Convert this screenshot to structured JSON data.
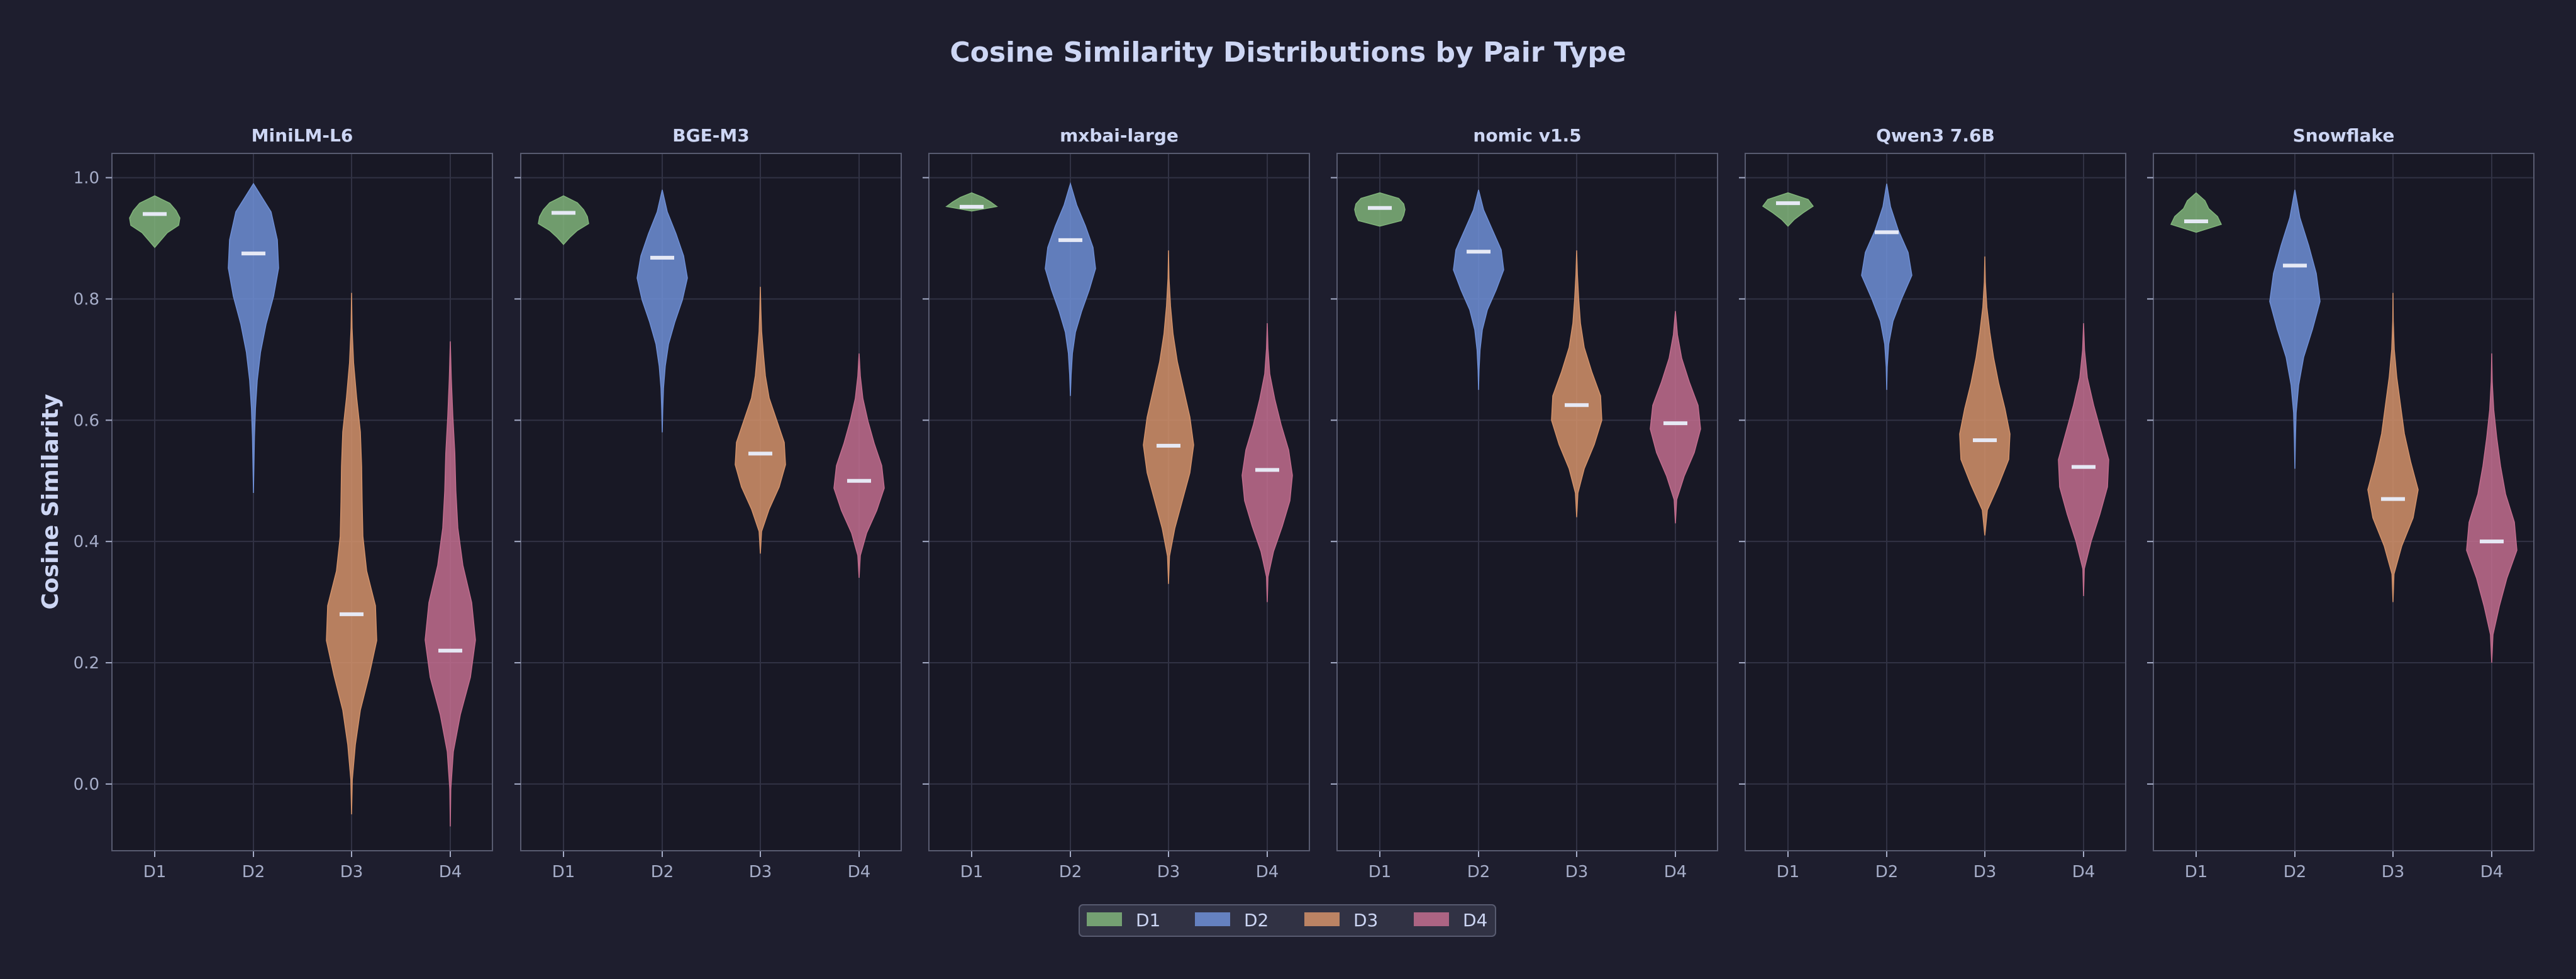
{
  "chart_data": {
    "type": "violin",
    "title": "Cosine Similarity Distributions by Pair Type",
    "ylabel": "Cosine Similarity",
    "xlabel": "",
    "ylim": [
      -0.11,
      1.04
    ],
    "yticks": [
      "0.0",
      "0.2",
      "0.4",
      "0.6",
      "0.8",
      "1.0"
    ],
    "ytick_values": [
      0.0,
      0.2,
      0.4,
      0.6,
      0.8,
      1.0
    ],
    "categories": [
      "D1",
      "D2",
      "D3",
      "D4"
    ],
    "grid": true,
    "legend_placement": "bottom-center",
    "colors": {
      "background": "#1e1e2e",
      "panel": "#181825",
      "panel_border": "#585b70",
      "grid": "#313244",
      "text": "#cdd6f4",
      "tick_text": "#a6adc8",
      "median": "#e6e9f5",
      "D1": "#80b47a",
      "D2": "#6e8fd6",
      "D3": "#d3926a",
      "D4": "#c26d8e"
    },
    "legend": [
      "D1",
      "D2",
      "D3",
      "D4"
    ],
    "panels": [
      {
        "title": "MiniLM-L6",
        "medians": {
          "D1": 0.94,
          "D2": 0.875,
          "D3": 0.28,
          "D4": 0.22
        },
        "violins": {
          "D1": {
            "min": 0.885,
            "max": 0.97,
            "profile": [
              0.25,
              0.5,
              0.95,
              1.0,
              0.85,
              0.6
            ]
          },
          "D2": {
            "min": 0.48,
            "max": 0.99,
            "profile": [
              0.02,
              0.04,
              0.08,
              0.15,
              0.28,
              0.5,
              0.8,
              1.0,
              0.95,
              0.7
            ]
          },
          "D3": {
            "min": -0.05,
            "max": 0.81,
            "profile": [
              0.03,
              0.15,
              0.35,
              0.7,
              1.0,
              0.95,
              0.6,
              0.45,
              0.42,
              0.4,
              0.35,
              0.2,
              0.08,
              0.02
            ]
          },
          "D4": {
            "min": -0.07,
            "max": 0.73,
            "profile": [
              0.02,
              0.12,
              0.4,
              0.8,
              1.0,
              0.85,
              0.5,
              0.3,
              0.22,
              0.18,
              0.1,
              0.04
            ]
          }
        }
      },
      {
        "title": "BGE-M3",
        "medians": {
          "D1": 0.942,
          "D2": 0.868,
          "D3": 0.545,
          "D4": 0.5
        },
        "violins": {
          "D1": {
            "min": 0.89,
            "max": 0.97,
            "profile": [
              0.25,
              0.55,
              1.0,
              0.95,
              0.8,
              0.55
            ]
          },
          "D2": {
            "min": 0.58,
            "max": 0.98,
            "profile": [
              0.02,
              0.05,
              0.12,
              0.25,
              0.5,
              0.8,
              1.0,
              0.85,
              0.55,
              0.2
            ]
          },
          "D3": {
            "min": 0.38,
            "max": 0.82,
            "profile": [
              0.05,
              0.35,
              0.75,
              1.0,
              0.95,
              0.65,
              0.35,
              0.2,
              0.12,
              0.05,
              0.02
            ]
          },
          "D4": {
            "min": 0.34,
            "max": 0.71,
            "profile": [
              0.05,
              0.3,
              0.7,
              1.0,
              0.9,
              0.6,
              0.35,
              0.15,
              0.05
            ]
          }
        }
      },
      {
        "title": "mxbai-large",
        "medians": {
          "D1": 0.952,
          "D2": 0.897,
          "D3": 0.558,
          "D4": 0.518
        },
        "violins": {
          "D1": {
            "min": 0.945,
            "max": 0.975,
            "profile": [
              1.0,
              0.75,
              0.45
            ]
          },
          "D2": {
            "min": 0.64,
            "max": 0.99,
            "profile": [
              0.03,
              0.08,
              0.2,
              0.45,
              0.75,
              1.0,
              0.9,
              0.6,
              0.25
            ]
          },
          "D3": {
            "min": 0.33,
            "max": 0.88,
            "profile": [
              0.04,
              0.25,
              0.55,
              0.85,
              1.0,
              0.85,
              0.6,
              0.35,
              0.18,
              0.08,
              0.02
            ]
          },
          "D4": {
            "min": 0.3,
            "max": 0.76,
            "profile": [
              0.03,
              0.25,
              0.6,
              0.9,
              1.0,
              0.85,
              0.55,
              0.3,
              0.1,
              0.03
            ]
          }
        }
      },
      {
        "title": "nomic v1.5",
        "medians": {
          "D1": 0.95,
          "D2": 0.878,
          "D3": 0.625,
          "D4": 0.595
        },
        "violins": {
          "D1": {
            "min": 0.92,
            "max": 0.975,
            "profile": [
              0.85,
              0.95,
              1.0,
              0.95,
              0.75
            ]
          },
          "D2": {
            "min": 0.65,
            "max": 0.98,
            "profile": [
              0.02,
              0.06,
              0.15,
              0.35,
              0.7,
              1.0,
              0.9,
              0.55,
              0.2
            ]
          },
          "D3": {
            "min": 0.44,
            "max": 0.88,
            "profile": [
              0.05,
              0.3,
              0.7,
              1.0,
              0.95,
              0.6,
              0.3,
              0.15,
              0.08,
              0.03
            ]
          },
          "D4": {
            "min": 0.43,
            "max": 0.78,
            "profile": [
              0.05,
              0.35,
              0.75,
              1.0,
              0.9,
              0.55,
              0.25,
              0.08
            ]
          }
        }
      },
      {
        "title": "Qwen3 7.6B",
        "medians": {
          "D1": 0.958,
          "D2": 0.91,
          "D3": 0.567,
          "D4": 0.523
        },
        "violins": {
          "D1": {
            "min": 0.92,
            "max": 0.975,
            "profile": [
              0.25,
              0.6,
              1.0,
              0.8
            ]
          },
          "D2": {
            "min": 0.65,
            "max": 0.99,
            "profile": [
              0.02,
              0.08,
              0.25,
              0.6,
              1.0,
              0.85,
              0.45,
              0.15
            ]
          },
          "D3": {
            "min": 0.41,
            "max": 0.87,
            "profile": [
              0.1,
              0.55,
              0.95,
              1.0,
              0.8,
              0.55,
              0.35,
              0.2,
              0.08,
              0.02
            ]
          },
          "D4": {
            "min": 0.31,
            "max": 0.76,
            "profile": [
              0.03,
              0.3,
              0.65,
              0.95,
              1.0,
              0.7,
              0.4,
              0.15,
              0.04
            ]
          }
        }
      },
      {
        "title": "Snowflake",
        "medians": {
          "D1": 0.928,
          "D2": 0.855,
          "D3": 0.47,
          "D4": 0.4
        },
        "violins": {
          "D1": {
            "min": 0.91,
            "max": 0.975,
            "profile": [
              1.0,
              0.85,
              0.5,
              0.35
            ]
          },
          "D2": {
            "min": 0.52,
            "max": 0.98,
            "profile": [
              0.02,
              0.05,
              0.15,
              0.35,
              0.7,
              1.0,
              0.85,
              0.55,
              0.2
            ]
          },
          "D3": {
            "min": 0.3,
            "max": 0.81,
            "profile": [
              0.04,
              0.35,
              0.8,
              1.0,
              0.7,
              0.45,
              0.3,
              0.15,
              0.05,
              0.01
            ]
          },
          "D4": {
            "min": 0.2,
            "max": 0.71,
            "profile": [
              0.05,
              0.3,
              0.6,
              1.0,
              0.9,
              0.55,
              0.35,
              0.2,
              0.08,
              0.02
            ]
          }
        }
      }
    ]
  }
}
